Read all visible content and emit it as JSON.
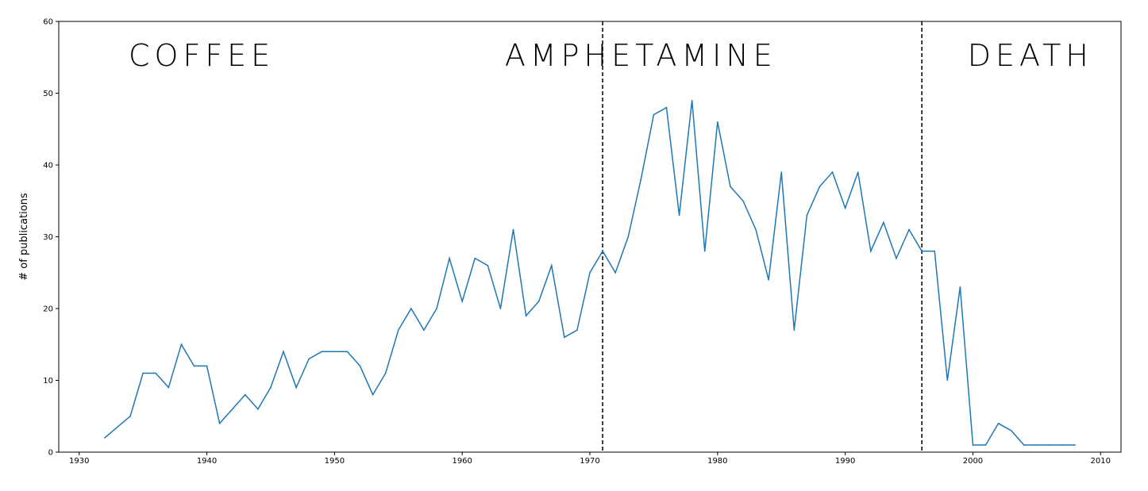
{
  "chart_data": {
    "type": "line",
    "title": "",
    "xlabel": "",
    "ylabel": "# of publications",
    "xlim": [
      1928.4,
      2011.6
    ],
    "ylim": [
      0,
      60
    ],
    "xticks": [
      1930,
      1940,
      1950,
      1960,
      1970,
      1980,
      1990,
      2000,
      2010
    ],
    "yticks": [
      0,
      10,
      20,
      30,
      40,
      50,
      60
    ],
    "grid": false,
    "line_color": "#1f77b4",
    "x": [
      1932,
      1934,
      1935,
      1936,
      1937,
      1938,
      1939,
      1940,
      1941,
      1942,
      1943,
      1944,
      1945,
      1946,
      1947,
      1948,
      1949,
      1950,
      1951,
      1952,
      1953,
      1954,
      1955,
      1956,
      1957,
      1958,
      1959,
      1960,
      1961,
      1962,
      1963,
      1964,
      1965,
      1966,
      1967,
      1968,
      1969,
      1970,
      1971,
      1972,
      1973,
      1974,
      1975,
      1976,
      1977,
      1978,
      1979,
      1980,
      1981,
      1982,
      1983,
      1984,
      1985,
      1986,
      1987,
      1988,
      1989,
      1990,
      1991,
      1992,
      1993,
      1994,
      1995,
      1996,
      1997,
      1998,
      1999,
      2000,
      2001,
      2002,
      2003,
      2004,
      2005,
      2006,
      2007,
      2008
    ],
    "y": [
      2,
      5,
      11,
      11,
      9,
      15,
      12,
      12,
      4,
      6,
      8,
      6,
      9,
      14,
      9,
      13,
      14,
      14,
      14,
      12,
      8,
      11,
      17,
      20,
      17,
      20,
      27,
      21,
      27,
      26,
      20,
      31,
      19,
      21,
      26,
      16,
      17,
      25,
      28,
      25,
      30,
      38,
      47,
      48,
      33,
      49,
      28,
      46,
      37,
      35,
      31,
      24,
      39,
      17,
      33,
      37,
      39,
      34,
      39,
      28,
      32,
      27,
      31,
      28,
      28,
      10,
      23,
      1,
      1,
      4,
      3,
      1,
      1,
      1,
      1,
      1
    ],
    "dividers": [
      1971,
      1996
    ],
    "regions": [
      {
        "label": "COFFEE",
        "x_center": 1939.6
      },
      {
        "label": "AMPHETAMINE",
        "x_center": 1974.0
      },
      {
        "label": "DEATH",
        "x_center": 2004.5
      }
    ]
  }
}
